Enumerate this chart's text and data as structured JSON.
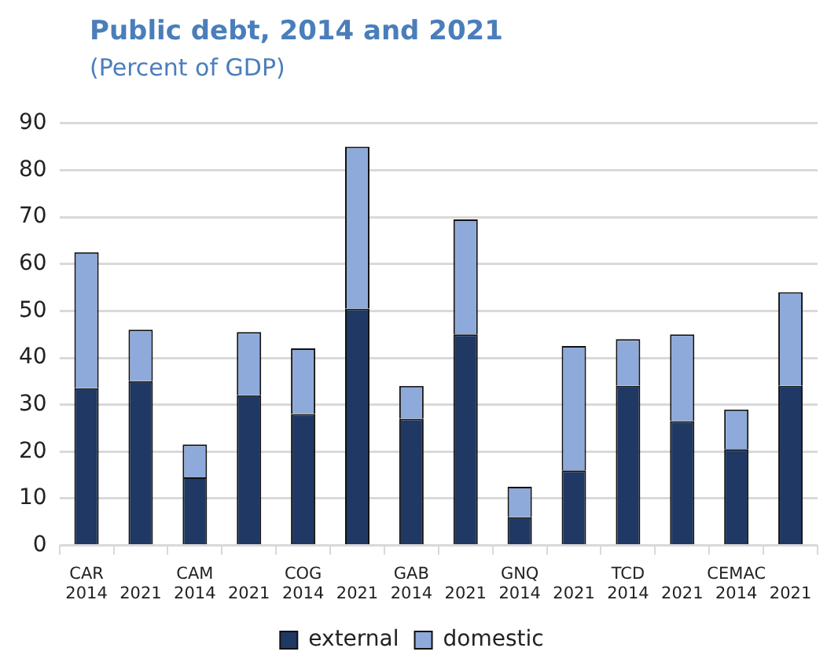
{
  "chart_data": {
    "type": "bar",
    "title": "Public debt, 2014 and 2021",
    "subtitle": "(Percent of GDP)",
    "categories": [
      "CAR\n2014",
      "2021",
      "CAM\n2014",
      "2021",
      "COG\n2014",
      "2021",
      "GAB\n2014",
      "2021",
      "GNQ\n2014",
      "2021",
      "TCD\n2014",
      "2021",
      "CEMAC\n2014",
      "2021"
    ],
    "series": [
      {
        "name": "external",
        "color": "#1f3864",
        "values": [
          33.5,
          35,
          14.5,
          32,
          28,
          50.5,
          27,
          45,
          6,
          16,
          34,
          26.5,
          20.5,
          34
        ]
      },
      {
        "name": "domestic",
        "color": "#8eaadb",
        "values": [
          29,
          11,
          7,
          13.5,
          14,
          34.5,
          7,
          24.5,
          6.5,
          26.5,
          10,
          18.5,
          8.5,
          20
        ]
      }
    ],
    "stacked": true,
    "ylim": [
      0,
      90
    ],
    "yticks": [
      0,
      10,
      20,
      30,
      40,
      50,
      60,
      70,
      80,
      90
    ],
    "grid": "y",
    "legend": "bottom"
  }
}
